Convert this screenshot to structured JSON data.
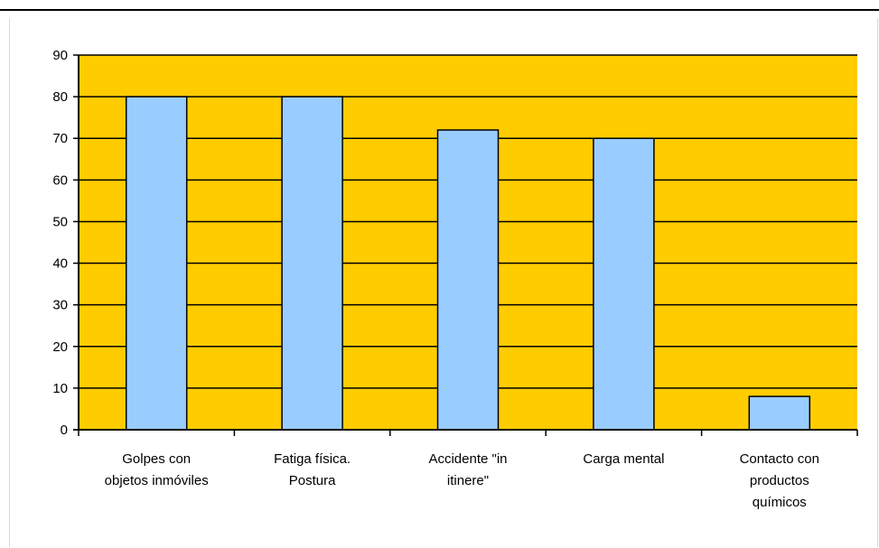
{
  "chart_data": {
    "type": "bar",
    "categories": [
      [
        "Golpes con",
        "objetos inmóviles"
      ],
      [
        "Fatiga física.",
        "Postura"
      ],
      [
        "Accidente \"in",
        "itinere\""
      ],
      [
        "Carga mental"
      ],
      [
        "Contacto con",
        "productos",
        "químicos"
      ]
    ],
    "values": [
      80,
      80,
      72,
      70,
      8
    ],
    "ylim": [
      0,
      90
    ],
    "yticks": [
      0,
      10,
      20,
      30,
      40,
      50,
      60,
      70,
      80,
      90
    ],
    "title": "",
    "xlabel": "",
    "ylabel": "",
    "grid": true,
    "legend": "none",
    "colors": {
      "plot_background": "#ffcc00",
      "bar_fill": "#99ccff",
      "bar_stroke": "#000000",
      "gridline": "#000000"
    }
  }
}
